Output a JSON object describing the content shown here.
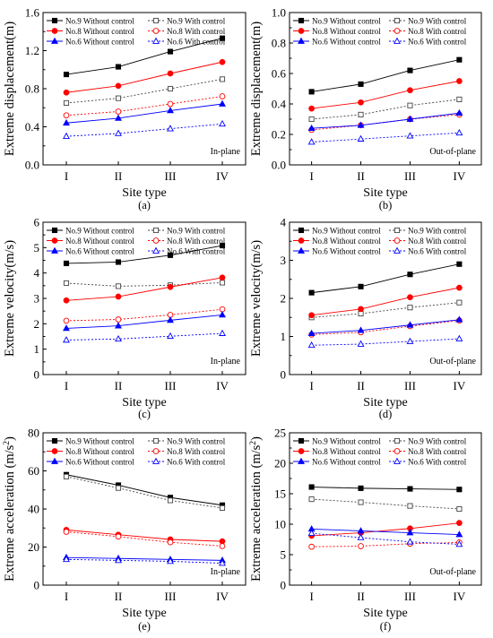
{
  "figure": {
    "legend_labels": [
      "No.9 Without control",
      "No.9 With control",
      "No.8 Without control",
      "No.8 With control",
      "No.6 Without control",
      "No.6 With control"
    ]
  },
  "chart_data": [
    {
      "panel_label": "(a)",
      "type": "line",
      "ylabel": "Extreme displacement(m)",
      "xlabel": "Site type",
      "annotation": "In-plane",
      "categories": [
        "I",
        "II",
        "III",
        "IV"
      ],
      "ylim": [
        0,
        1.6
      ],
      "yticks": [
        0.0,
        0.4,
        0.8,
        1.2,
        1.6
      ],
      "ytick_labels": [
        "0.0",
        "0.4",
        "0.8",
        "1.2",
        "1.6"
      ],
      "series": [
        {
          "name": "No.9 Without control",
          "values": [
            0.95,
            1.03,
            1.19,
            1.33
          ]
        },
        {
          "name": "No.9 With control",
          "values": [
            0.65,
            0.7,
            0.8,
            0.9
          ]
        },
        {
          "name": "No.8 Without control",
          "values": [
            0.76,
            0.83,
            0.96,
            1.08
          ]
        },
        {
          "name": "No.8 With control",
          "values": [
            0.52,
            0.56,
            0.64,
            0.72
          ]
        },
        {
          "name": "No.6 Without control",
          "values": [
            0.44,
            0.49,
            0.57,
            0.64
          ]
        },
        {
          "name": "No.6 With control",
          "values": [
            0.3,
            0.33,
            0.38,
            0.43
          ]
        }
      ]
    },
    {
      "panel_label": "(b)",
      "type": "line",
      "ylabel": "Extreme displacement(m)",
      "xlabel": "Site type",
      "annotation": "Out-of-plane",
      "categories": [
        "I",
        "II",
        "III",
        "IV"
      ],
      "ylim": [
        0,
        1.0
      ],
      "yticks": [
        0.0,
        0.2,
        0.4,
        0.6,
        0.8,
        1.0
      ],
      "ytick_labels": [
        "0.0",
        "0.2",
        "0.4",
        "0.6",
        "0.8",
        "1.0"
      ],
      "series": [
        {
          "name": "No.9 Without control",
          "values": [
            0.48,
            0.53,
            0.62,
            0.69
          ]
        },
        {
          "name": "No.9 With control",
          "values": [
            0.3,
            0.33,
            0.39,
            0.43
          ]
        },
        {
          "name": "No.8 Without control",
          "values": [
            0.37,
            0.41,
            0.49,
            0.55
          ]
        },
        {
          "name": "No.8 With control",
          "values": [
            0.23,
            0.26,
            0.3,
            0.33
          ]
        },
        {
          "name": "No.6 Without control",
          "values": [
            0.24,
            0.26,
            0.3,
            0.34
          ]
        },
        {
          "name": "No.6 With control",
          "values": [
            0.15,
            0.17,
            0.19,
            0.21
          ]
        }
      ]
    },
    {
      "panel_label": "(c)",
      "type": "line",
      "ylabel": "Extreme velocity(m/s)",
      "xlabel": "Site type",
      "annotation": "In-plane",
      "categories": [
        "I",
        "II",
        "III",
        "IV"
      ],
      "ylim": [
        0,
        6
      ],
      "yticks": [
        0,
        1,
        2,
        3,
        4,
        5,
        6
      ],
      "ytick_labels": [
        "0",
        "1",
        "2",
        "3",
        "4",
        "5",
        "6"
      ],
      "series": [
        {
          "name": "No.9 Without control",
          "values": [
            4.38,
            4.43,
            4.7,
            5.08
          ]
        },
        {
          "name": "No.9 With control",
          "values": [
            3.6,
            3.48,
            3.52,
            3.62
          ]
        },
        {
          "name": "No.8 Without control",
          "values": [
            2.92,
            3.07,
            3.45,
            3.82
          ]
        },
        {
          "name": "No.8 With control",
          "values": [
            2.12,
            2.17,
            2.35,
            2.57
          ]
        },
        {
          "name": "No.6 Without control",
          "values": [
            1.82,
            1.92,
            2.14,
            2.35
          ]
        },
        {
          "name": "No.6 With control",
          "values": [
            1.36,
            1.4,
            1.51,
            1.62
          ]
        }
      ]
    },
    {
      "panel_label": "(d)",
      "type": "line",
      "ylabel": "Extreme velocity(m/s)",
      "xlabel": "Site type",
      "annotation": "Out-of-plane",
      "categories": [
        "I",
        "II",
        "III",
        "IV"
      ],
      "ylim": [
        0,
        4
      ],
      "yticks": [
        0,
        1,
        2,
        3,
        4
      ],
      "ytick_labels": [
        "0",
        "1",
        "2",
        "3",
        "4"
      ],
      "series": [
        {
          "name": "No.9 Without control",
          "values": [
            2.15,
            2.31,
            2.63,
            2.9
          ]
        },
        {
          "name": "No.9 With control",
          "values": [
            1.5,
            1.6,
            1.76,
            1.89
          ]
        },
        {
          "name": "No.8 Without control",
          "values": [
            1.56,
            1.72,
            2.03,
            2.28
          ]
        },
        {
          "name": "No.8 With control",
          "values": [
            1.05,
            1.11,
            1.27,
            1.42
          ]
        },
        {
          "name": "No.6 Without control",
          "values": [
            1.08,
            1.16,
            1.3,
            1.44
          ]
        },
        {
          "name": "No.6 With control",
          "values": [
            0.77,
            0.8,
            0.87,
            0.94
          ]
        }
      ]
    },
    {
      "panel_label": "(e)",
      "type": "line",
      "ylabel": "Extreme acceleration (m/s",
      "ylabel_sup": "2",
      "ylabel_end": ")",
      "xlabel": "Site type",
      "annotation": "In-plane",
      "categories": [
        "I",
        "II",
        "III",
        "IV"
      ],
      "ylim": [
        0,
        80
      ],
      "yticks": [
        0,
        20,
        40,
        60,
        80
      ],
      "ytick_labels": [
        "0",
        "20",
        "40",
        "60",
        "80"
      ],
      "series": [
        {
          "name": "No.9 Without control",
          "values": [
            58.0,
            52.5,
            46.0,
            42.0
          ]
        },
        {
          "name": "No.9 With control",
          "values": [
            57.0,
            51.0,
            44.5,
            40.5
          ]
        },
        {
          "name": "No.8 Without control",
          "values": [
            29.0,
            26.5,
            24.0,
            23.0
          ]
        },
        {
          "name": "No.8 With control",
          "values": [
            28.0,
            25.5,
            22.5,
            20.5
          ]
        },
        {
          "name": "No.6 Without control",
          "values": [
            14.5,
            14.0,
            13.5,
            13.0
          ]
        },
        {
          "name": "No.6 With control",
          "values": [
            13.5,
            13.0,
            12.5,
            11.5
          ]
        }
      ]
    },
    {
      "panel_label": "(f)",
      "type": "line",
      "ylabel": "Extreme acceleration (m/s",
      "ylabel_sup": "2",
      "ylabel_end": ")",
      "xlabel": "Site type",
      "annotation": "Out-of-plane",
      "categories": [
        "I",
        "II",
        "III",
        "IV"
      ],
      "ylim": [
        0,
        25
      ],
      "yticks": [
        0,
        5,
        10,
        15,
        20,
        25
      ],
      "ytick_labels": [
        "0",
        "5",
        "10",
        "15",
        "20",
        "25"
      ],
      "series": [
        {
          "name": "No.9 Without control",
          "values": [
            16.1,
            15.9,
            15.8,
            15.7
          ]
        },
        {
          "name": "No.9 With control",
          "values": [
            14.1,
            13.6,
            13.0,
            12.5
          ]
        },
        {
          "name": "No.8 Without control",
          "values": [
            8.1,
            8.6,
            9.3,
            10.2
          ]
        },
        {
          "name": "No.8 With control",
          "values": [
            6.3,
            6.4,
            6.8,
            7.0
          ]
        },
        {
          "name": "No.6 Without control",
          "values": [
            9.2,
            8.9,
            8.6,
            8.3
          ]
        },
        {
          "name": "No.6 With control",
          "values": [
            8.5,
            7.8,
            7.1,
            6.7
          ]
        }
      ]
    }
  ]
}
